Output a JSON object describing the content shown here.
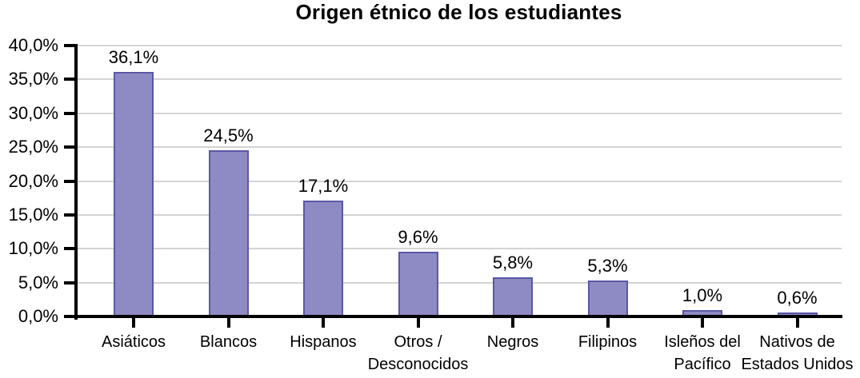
{
  "chart_data": {
    "type": "bar",
    "title": "Origen étnico de los estudiantes",
    "categories": [
      "Asiáticos",
      "Blancos",
      "Hispanos",
      "Otros / Desconocidos",
      "Negros",
      "Filipinos",
      "Isleños del Pacífico",
      "Nativos de Estados Unidos"
    ],
    "category_lines": [
      [
        "Asiáticos"
      ],
      [
        "Blancos"
      ],
      [
        "Hispanos"
      ],
      [
        "Otros /",
        "Desconocidos"
      ],
      [
        "Negros"
      ],
      [
        "Filipinos"
      ],
      [
        "Isleños del",
        "Pacífico"
      ],
      [
        "Nativos de",
        "Estados Unidos"
      ]
    ],
    "values": [
      36.1,
      24.5,
      17.1,
      9.6,
      5.8,
      5.3,
      1.0,
      0.6
    ],
    "value_labels": [
      "36,1%",
      "24,5%",
      "17,1%",
      "9,6%",
      "5,8%",
      "5,3%",
      "1,0%",
      "0,6%"
    ],
    "xlabel": "",
    "ylabel": "",
    "ylim": [
      0,
      40
    ],
    "ytick_step": 5,
    "ytick_labels": [
      "0,0%",
      "5,0%",
      "10,0%",
      "15,0%",
      "20,0%",
      "25,0%",
      "30,0%",
      "35,0%",
      "40,0%"
    ],
    "grid": true,
    "legend_position": "none",
    "decimal_separator": ",",
    "colors": {
      "bar_fill": "#8e8bc4",
      "bar_border": "#5a57a5",
      "gridline": "#d3d3d3",
      "axis": "#000000",
      "text": "#000000",
      "background": "#ffffff"
    }
  }
}
